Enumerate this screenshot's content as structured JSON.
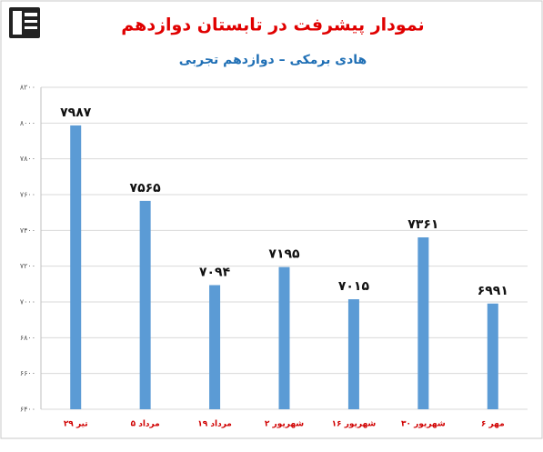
{
  "chart_data": {
    "type": "bar",
    "title": "نمودار پیشرفت در تابستان دوازدهم",
    "subtitle": "هادی برمکی – دوازدهم تجربی",
    "categories": [
      "۲۹ تیر",
      "۵ مرداد",
      "۱۹ مرداد",
      "۲ شهریور",
      "۱۶ شهریور",
      "۳۰ شهریور",
      "۶ مهر"
    ],
    "values": [
      7987,
      7565,
      7094,
      7195,
      7015,
      7361,
      6991
    ],
    "value_labels": [
      "۷۹۸۷",
      "۷۵۶۵",
      "۷۰۹۴",
      "۷۱۹۵",
      "۷۰۱۵",
      "۷۳۶۱",
      "۶۹۹۱"
    ],
    "color": "#5b9bd5",
    "ylim": [
      6400,
      8200
    ],
    "yticks": [
      {
        "value": 6400,
        "label": "۶۴۰۰"
      },
      {
        "value": 6600,
        "label": "۶۶۰۰"
      },
      {
        "value": 6800,
        "label": "۶۸۰۰"
      },
      {
        "value": 7000,
        "label": "۷۰۰۰"
      },
      {
        "value": 7200,
        "label": "۷۲۰۰"
      },
      {
        "value": 7400,
        "label": "۷۴۰۰"
      },
      {
        "value": 7600,
        "label": "۷۶۰۰"
      },
      {
        "value": 7800,
        "label": "۷۸۰۰"
      },
      {
        "value": 8000,
        "label": "۸۰۰۰"
      },
      {
        "value": 8200,
        "label": "۸۲۰۰"
      }
    ],
    "grid": true
  }
}
